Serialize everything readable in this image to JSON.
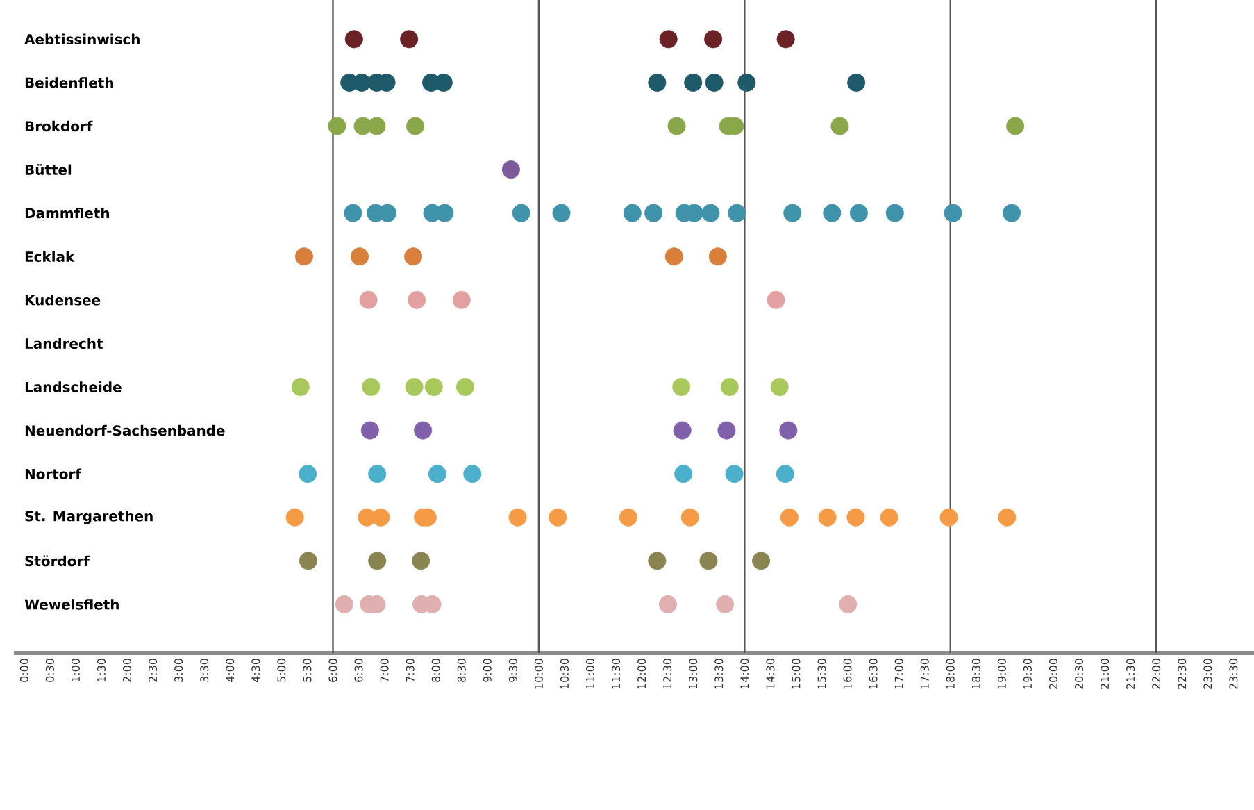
{
  "chart_data": {
    "type": "scatter",
    "orientation": "horizontal",
    "grid": false,
    "categories": [
      "Aebtissinwisch",
      "Beidenfleth",
      "Brokdorf",
      "Büttel",
      "Dammfleth",
      "Ecklak",
      "Kudensee",
      "Landrecht",
      "Landscheide",
      "Neuendorf-Sachsenbande",
      "Nortorf",
      "St. Margarethen",
      "Stördorf",
      "Wewelsfleth"
    ],
    "series": [
      {
        "color": "#6b2227",
        "x": [
          "Aebtissinwisch",
          "Aebtissinwisch",
          "Aebtissinwisch",
          "Aebtissinwisch",
          "Aebtissinwisch"
        ],
        "values": [
          6.41,
          7.48,
          12.52,
          13.39,
          14.8
        ]
      },
      {
        "color": "#1f5a6b",
        "x": [
          "Beidenfleth",
          "Beidenfleth",
          "Beidenfleth",
          "Beidenfleth",
          "Beidenfleth",
          "Beidenfleth",
          "Beidenfleth",
          "Beidenfleth",
          "Beidenfleth",
          "Beidenfleth",
          "Beidenfleth"
        ],
        "values": [
          6.32,
          6.56,
          6.85,
          7.04,
          7.91,
          8.15,
          12.3,
          13.0,
          13.41,
          14.04,
          16.17
        ]
      },
      {
        "color": "#8aa84a",
        "x": [
          "Brokdorf",
          "Brokdorf",
          "Brokdorf",
          "Brokdorf",
          "Brokdorf",
          "Brokdorf",
          "Brokdorf",
          "Brokdorf",
          "Brokdorf"
        ],
        "values": [
          6.08,
          6.58,
          6.85,
          7.6,
          12.68,
          13.68,
          13.81,
          15.85,
          19.26
        ]
      },
      {
        "color": "#7a5a9a",
        "x": [
          "Büttel"
        ],
        "values": [
          9.46
        ]
      },
      {
        "color": "#3f94ac",
        "x": [
          "Dammfleth",
          "Dammfleth",
          "Dammfleth",
          "Dammfleth",
          "Dammfleth",
          "Dammfleth",
          "Dammfleth",
          "Dammfleth",
          "Dammfleth",
          "Dammfleth",
          "Dammfleth",
          "Dammfleth",
          "Dammfleth",
          "Dammfleth",
          "Dammfleth",
          "Dammfleth",
          "Dammfleth",
          "Dammfleth",
          "Dammfleth"
        ],
        "values": [
          6.39,
          6.83,
          7.06,
          7.93,
          8.17,
          9.66,
          10.44,
          11.82,
          12.23,
          12.83,
          13.02,
          13.34,
          13.85,
          14.93,
          15.7,
          16.22,
          16.92,
          18.05,
          19.19
        ]
      },
      {
        "color": "#d97f3c",
        "x": [
          "Ecklak",
          "Ecklak",
          "Ecklak",
          "Ecklak",
          "Ecklak"
        ],
        "values": [
          5.44,
          6.52,
          7.56,
          12.63,
          13.48
        ]
      },
      {
        "color": "#e3a0a0",
        "x": [
          "Kudensee",
          "Kudensee",
          "Kudensee",
          "Kudensee"
        ],
        "values": [
          6.69,
          7.63,
          8.5,
          14.61
        ]
      },
      {
        "color": "#a8c85c",
        "x": [
          "Landscheide",
          "Landscheide",
          "Landscheide",
          "Landscheide",
          "Landscheide",
          "Landscheide",
          "Landscheide",
          "Landscheide"
        ],
        "values": [
          5.37,
          6.74,
          7.58,
          7.96,
          8.57,
          12.77,
          13.71,
          14.68
        ]
      },
      {
        "color": "#8060a8",
        "x": [
          "Neuendorf-Sachsenbande",
          "Neuendorf-Sachsenbande",
          "Neuendorf-Sachsenbande",
          "Neuendorf-Sachsenbande",
          "Neuendorf-Sachsenbande"
        ],
        "values": [
          6.72,
          7.75,
          12.79,
          13.65,
          14.85
        ]
      },
      {
        "color": "#4cb0cc",
        "x": [
          "Nortorf",
          "Nortorf",
          "Nortorf",
          "Nortorf",
          "Nortorf",
          "Nortorf",
          "Nortorf"
        ],
        "values": [
          5.51,
          6.86,
          8.03,
          8.71,
          12.81,
          13.8,
          14.79
        ]
      },
      {
        "color": "#f59a45",
        "x": [
          "St. Margarethen",
          "St. Margarethen",
          "St. Margarethen",
          "St. Margarethen",
          "St. Margarethen",
          "St. Margarethen",
          "St. Margarethen",
          "St. Margarethen",
          "St. Margarethen",
          "St. Margarethen",
          "St. Margarethen",
          "St. Margarethen",
          "St. Margarethen",
          "St. Margarethen",
          "St. Margarethen"
        ],
        "values": [
          5.26,
          6.66,
          6.93,
          7.75,
          7.84,
          9.59,
          10.37,
          11.74,
          12.94,
          14.87,
          15.61,
          16.16,
          16.81,
          17.97,
          19.1
        ]
      },
      {
        "color": "#8a8550",
        "x": [
          "Stördorf",
          "Stördorf",
          "Stördorf",
          "Stördorf",
          "Stördorf",
          "Stördorf"
        ],
        "values": [
          5.52,
          6.86,
          7.71,
          12.3,
          13.3,
          14.32
        ]
      },
      {
        "color": "#e0b0b0",
        "x": [
          "Wewelsfleth",
          "Wewelsfleth",
          "Wewelsfleth",
          "Wewelsfleth",
          "Wewelsfleth",
          "Wewelsfleth",
          "Wewelsfleth",
          "Wewelsfleth"
        ],
        "values": [
          6.22,
          6.7,
          6.85,
          7.72,
          7.93,
          12.51,
          13.62,
          16.01
        ]
      }
    ],
    "xlim": [
      -0.2,
      23.9
    ],
    "xticks": [
      {
        "value": 0,
        "label": "0:00"
      },
      {
        "value": 0.5,
        "label": "0:30"
      },
      {
        "value": 1,
        "label": "1:00"
      },
      {
        "value": 1.5,
        "label": "1:30"
      },
      {
        "value": 2,
        "label": "2:00"
      },
      {
        "value": 2.5,
        "label": "2:30"
      },
      {
        "value": 3,
        "label": "3:00"
      },
      {
        "value": 3.5,
        "label": "3:30"
      },
      {
        "value": 4,
        "label": "4:00"
      },
      {
        "value": 4.5,
        "label": "4:30"
      },
      {
        "value": 5,
        "label": "5:00"
      },
      {
        "value": 5.5,
        "label": "5:30"
      },
      {
        "value": 6,
        "label": "6:00"
      },
      {
        "value": 6.5,
        "label": "6:30"
      },
      {
        "value": 7,
        "label": "7:00"
      },
      {
        "value": 7.5,
        "label": "7:30"
      },
      {
        "value": 8,
        "label": "8:00"
      },
      {
        "value": 8.5,
        "label": "8:30"
      },
      {
        "value": 9,
        "label": "9:00"
      },
      {
        "value": 9.5,
        "label": "9:30"
      },
      {
        "value": 10,
        "label": "10:00"
      },
      {
        "value": 10.5,
        "label": "10:30"
      },
      {
        "value": 11,
        "label": "11:00"
      },
      {
        "value": 11.5,
        "label": "11:30"
      },
      {
        "value": 12,
        "label": "12:00"
      },
      {
        "value": 12.5,
        "label": "12:30"
      },
      {
        "value": 13,
        "label": "13:00"
      },
      {
        "value": 13.5,
        "label": "13:30"
      },
      {
        "value": 14,
        "label": "14:00"
      },
      {
        "value": 14.5,
        "label": "14:30"
      },
      {
        "value": 15,
        "label": "15:00"
      },
      {
        "value": 15.5,
        "label": "15:30"
      },
      {
        "value": 16,
        "label": "16:00"
      },
      {
        "value": 16.5,
        "label": "16:30"
      },
      {
        "value": 17,
        "label": "17:00"
      },
      {
        "value": 17.5,
        "label": "17:30"
      },
      {
        "value": 18,
        "label": "18:00"
      },
      {
        "value": 18.5,
        "label": "18:30"
      },
      {
        "value": 19,
        "label": "19:00"
      },
      {
        "value": 19.5,
        "label": "19:30"
      },
      {
        "value": 20,
        "label": "20:00"
      },
      {
        "value": 20.5,
        "label": "20:30"
      },
      {
        "value": 21,
        "label": "21:00"
      },
      {
        "value": 21.5,
        "label": "21:30"
      },
      {
        "value": 22,
        "label": "22:00"
      },
      {
        "value": 22.5,
        "label": "22:30"
      },
      {
        "value": 23,
        "label": "23:00"
      },
      {
        "value": 23.5,
        "label": "23:30"
      }
    ],
    "ref_lines": [
      {
        "axis": "x",
        "value": 6,
        "color": "#555555",
        "line_style": "solid"
      },
      {
        "axis": "x",
        "value": 10,
        "color": "#555555",
        "line_style": "solid"
      },
      {
        "axis": "x",
        "value": 14,
        "color": "#555555",
        "line_style": "solid"
      },
      {
        "axis": "x",
        "value": 18,
        "color": "#555555",
        "line_style": "solid"
      },
      {
        "axis": "x",
        "value": 22,
        "color": "#555555",
        "line_style": "solid"
      }
    ]
  }
}
